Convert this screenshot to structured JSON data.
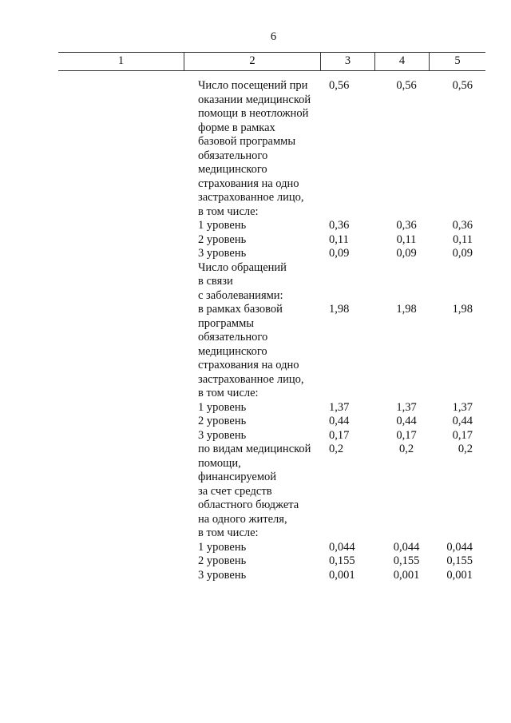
{
  "page_number": "6",
  "header": [
    "1",
    "2",
    "3",
    "4",
    "5"
  ],
  "rows": [
    {
      "text": "Число посещений при",
      "c3": "0,56",
      "c4": "0,56",
      "c5": "0,56"
    },
    {
      "text": "оказании медицинской"
    },
    {
      "text": "помощи в неотложной"
    },
    {
      "text": "форме в рамках"
    },
    {
      "text": "базовой программы"
    },
    {
      "text": "обязательного"
    },
    {
      "text": "медицинского"
    },
    {
      "text": "страхования на одно"
    },
    {
      "text": "застрахованное лицо,"
    },
    {
      "text": "в том числе:"
    },
    {
      "text": "1 уровень",
      "c3": "0,36",
      "c4": "0,36",
      "c5": "0,36"
    },
    {
      "text": "2 уровень",
      "c3": "0,11",
      "c4": "0,11",
      "c5": "0,11"
    },
    {
      "text": "3 уровень",
      "c3": "0,09",
      "c4": "0,09",
      "c5": "0,09"
    },
    {
      "text": "Число обращений"
    },
    {
      "text": "в связи"
    },
    {
      "text": "с заболеваниями:"
    },
    {
      "text": "в рамках базовой",
      "c3": "1,98",
      "c4": "1,98",
      "c5": "1,98"
    },
    {
      "text": "программы"
    },
    {
      "text": "обязательного"
    },
    {
      "text": "медицинского"
    },
    {
      "text": "страхования на одно"
    },
    {
      "text": "застрахованное лицо,"
    },
    {
      "text": "в том числе:"
    },
    {
      "text": "1 уровень",
      "c3": "1,37",
      "c4": "1,37",
      "c5": "1,37"
    },
    {
      "text": "2 уровень",
      "c3": "0,44",
      "c4": "0,44",
      "c5": "0,44"
    },
    {
      "text": "3 уровень",
      "c3": "0,17",
      "c4": "0,17",
      "c5": "0,17"
    },
    {
      "text": "по видам медицинской",
      "c3": "0,2",
      "c4": "0,2",
      "c5": "0,2"
    },
    {
      "text": "помощи,"
    },
    {
      "text": "финансируемой"
    },
    {
      "text": "за счет средств"
    },
    {
      "text": "областного бюджета"
    },
    {
      "text": "на одного жителя,"
    },
    {
      "text": "в том числе:"
    },
    {
      "text": "1 уровень",
      "c3": "0,044",
      "c4": "0,044",
      "c5": "0,044"
    },
    {
      "text": "2 уровень",
      "c3": "0,155",
      "c4": "0,155",
      "c5": "0,155"
    },
    {
      "text": "3 уровень",
      "c3": "0,001",
      "c4": "0,001",
      "c5": "0,001"
    }
  ]
}
